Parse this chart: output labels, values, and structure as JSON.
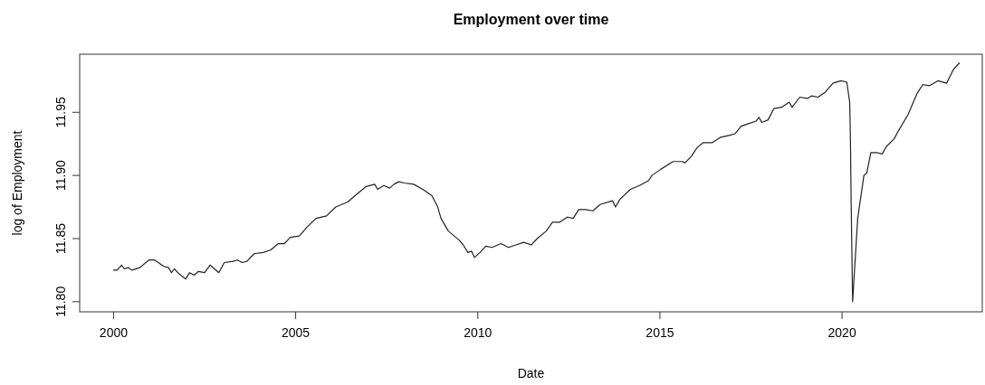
{
  "chart_data": {
    "type": "line",
    "title": "Employment over time",
    "xlabel": "Date",
    "ylabel": "log of Employment",
    "xlim": [
      1999.07,
      2023.85
    ],
    "ylim": [
      11.792,
      11.996
    ],
    "xticks": [
      2000,
      2005,
      2010,
      2015,
      2020
    ],
    "yticks": [
      {
        "value": 11.8,
        "label": "11.80"
      },
      {
        "value": 11.85,
        "label": "11.85"
      },
      {
        "value": 11.9,
        "label": "11.90"
      },
      {
        "value": 11.95,
        "label": "11.95"
      }
    ],
    "grid": false,
    "marker": "none",
    "line_style": "solid",
    "series": [
      {
        "color": "#222222",
        "x": [
          2000.0,
          2000.1,
          2000.22,
          2000.3,
          2000.4,
          2000.51,
          2000.72,
          2000.97,
          2001.13,
          2001.38,
          2001.51,
          2001.59,
          2001.67,
          2001.8,
          2001.98,
          2002.09,
          2002.21,
          2002.33,
          2002.5,
          2002.65,
          2002.89,
          2003.04,
          2003.28,
          2003.4,
          2003.53,
          2003.66,
          2003.86,
          2004.11,
          2004.32,
          2004.52,
          2004.69,
          2004.85,
          2005.1,
          2005.31,
          2005.56,
          2005.85,
          2006.1,
          2006.43,
          2006.63,
          2006.84,
          2006.92,
          2007.17,
          2007.25,
          2007.42,
          2007.58,
          2007.7,
          2007.83,
          2007.99,
          2008.24,
          2008.49,
          2008.74,
          2008.9,
          2008.99,
          2009.19,
          2009.48,
          2009.6,
          2009.73,
          2009.83,
          2009.91,
          2010.06,
          2010.22,
          2010.39,
          2010.64,
          2010.84,
          2011.05,
          2011.26,
          2011.47,
          2011.63,
          2011.88,
          2012.05,
          2012.25,
          2012.46,
          2012.62,
          2012.77,
          2012.95,
          2013.16,
          2013.36,
          2013.7,
          2013.78,
          2013.9,
          2014.19,
          2014.44,
          2014.69,
          2014.78,
          2015.03,
          2015.36,
          2015.61,
          2015.69,
          2015.86,
          2016.02,
          2016.19,
          2016.44,
          2016.65,
          2016.94,
          2017.06,
          2017.23,
          2017.43,
          2017.64,
          2017.72,
          2017.8,
          2017.97,
          2018.13,
          2018.34,
          2018.55,
          2018.63,
          2018.84,
          2019.05,
          2019.17,
          2019.34,
          2019.54,
          2019.75,
          2019.96,
          2020.13,
          2020.21,
          2020.23,
          2020.25,
          2020.29,
          2020.43,
          2020.6,
          2020.68,
          2020.79,
          2020.97,
          2021.1,
          2021.22,
          2021.43,
          2021.56,
          2021.81,
          2022.06,
          2022.22,
          2022.39,
          2022.64,
          2022.87,
          2023.06,
          2023.22
        ],
        "values": [
          11.825,
          11.825,
          11.829,
          11.826,
          11.827,
          11.825,
          11.827,
          11.833,
          11.833,
          11.828,
          11.827,
          11.823,
          11.826,
          11.822,
          11.818,
          11.823,
          11.821,
          11.824,
          11.823,
          11.829,
          11.823,
          11.831,
          11.832,
          11.833,
          11.831,
          11.832,
          11.838,
          11.839,
          11.841,
          11.846,
          11.846,
          11.851,
          11.852,
          11.859,
          11.866,
          11.868,
          11.875,
          11.879,
          11.884,
          11.889,
          11.891,
          11.893,
          11.889,
          11.892,
          11.89,
          11.893,
          11.895,
          11.894,
          11.893,
          11.889,
          11.884,
          11.875,
          11.866,
          11.856,
          11.849,
          11.845,
          11.839,
          11.84,
          11.835,
          11.839,
          11.844,
          11.843,
          11.846,
          11.843,
          11.845,
          11.847,
          11.845,
          11.85,
          11.856,
          11.863,
          11.863,
          11.867,
          11.866,
          11.873,
          11.873,
          11.872,
          11.877,
          11.88,
          11.875,
          11.881,
          11.889,
          11.892,
          11.896,
          11.9,
          11.905,
          11.911,
          11.911,
          11.91,
          11.915,
          11.922,
          11.926,
          11.926,
          11.93,
          11.932,
          11.933,
          11.939,
          11.941,
          11.943,
          11.946,
          11.942,
          11.944,
          11.953,
          11.954,
          11.958,
          11.954,
          11.962,
          11.961,
          11.963,
          11.962,
          11.966,
          11.973,
          11.975,
          11.974,
          11.958,
          11.929,
          11.879,
          11.8,
          11.866,
          11.9,
          11.902,
          11.918,
          11.918,
          11.917,
          11.923,
          11.929,
          11.936,
          11.948,
          11.965,
          11.972,
          11.971,
          11.975,
          11.973,
          11.984,
          11.989
        ]
      }
    ]
  }
}
